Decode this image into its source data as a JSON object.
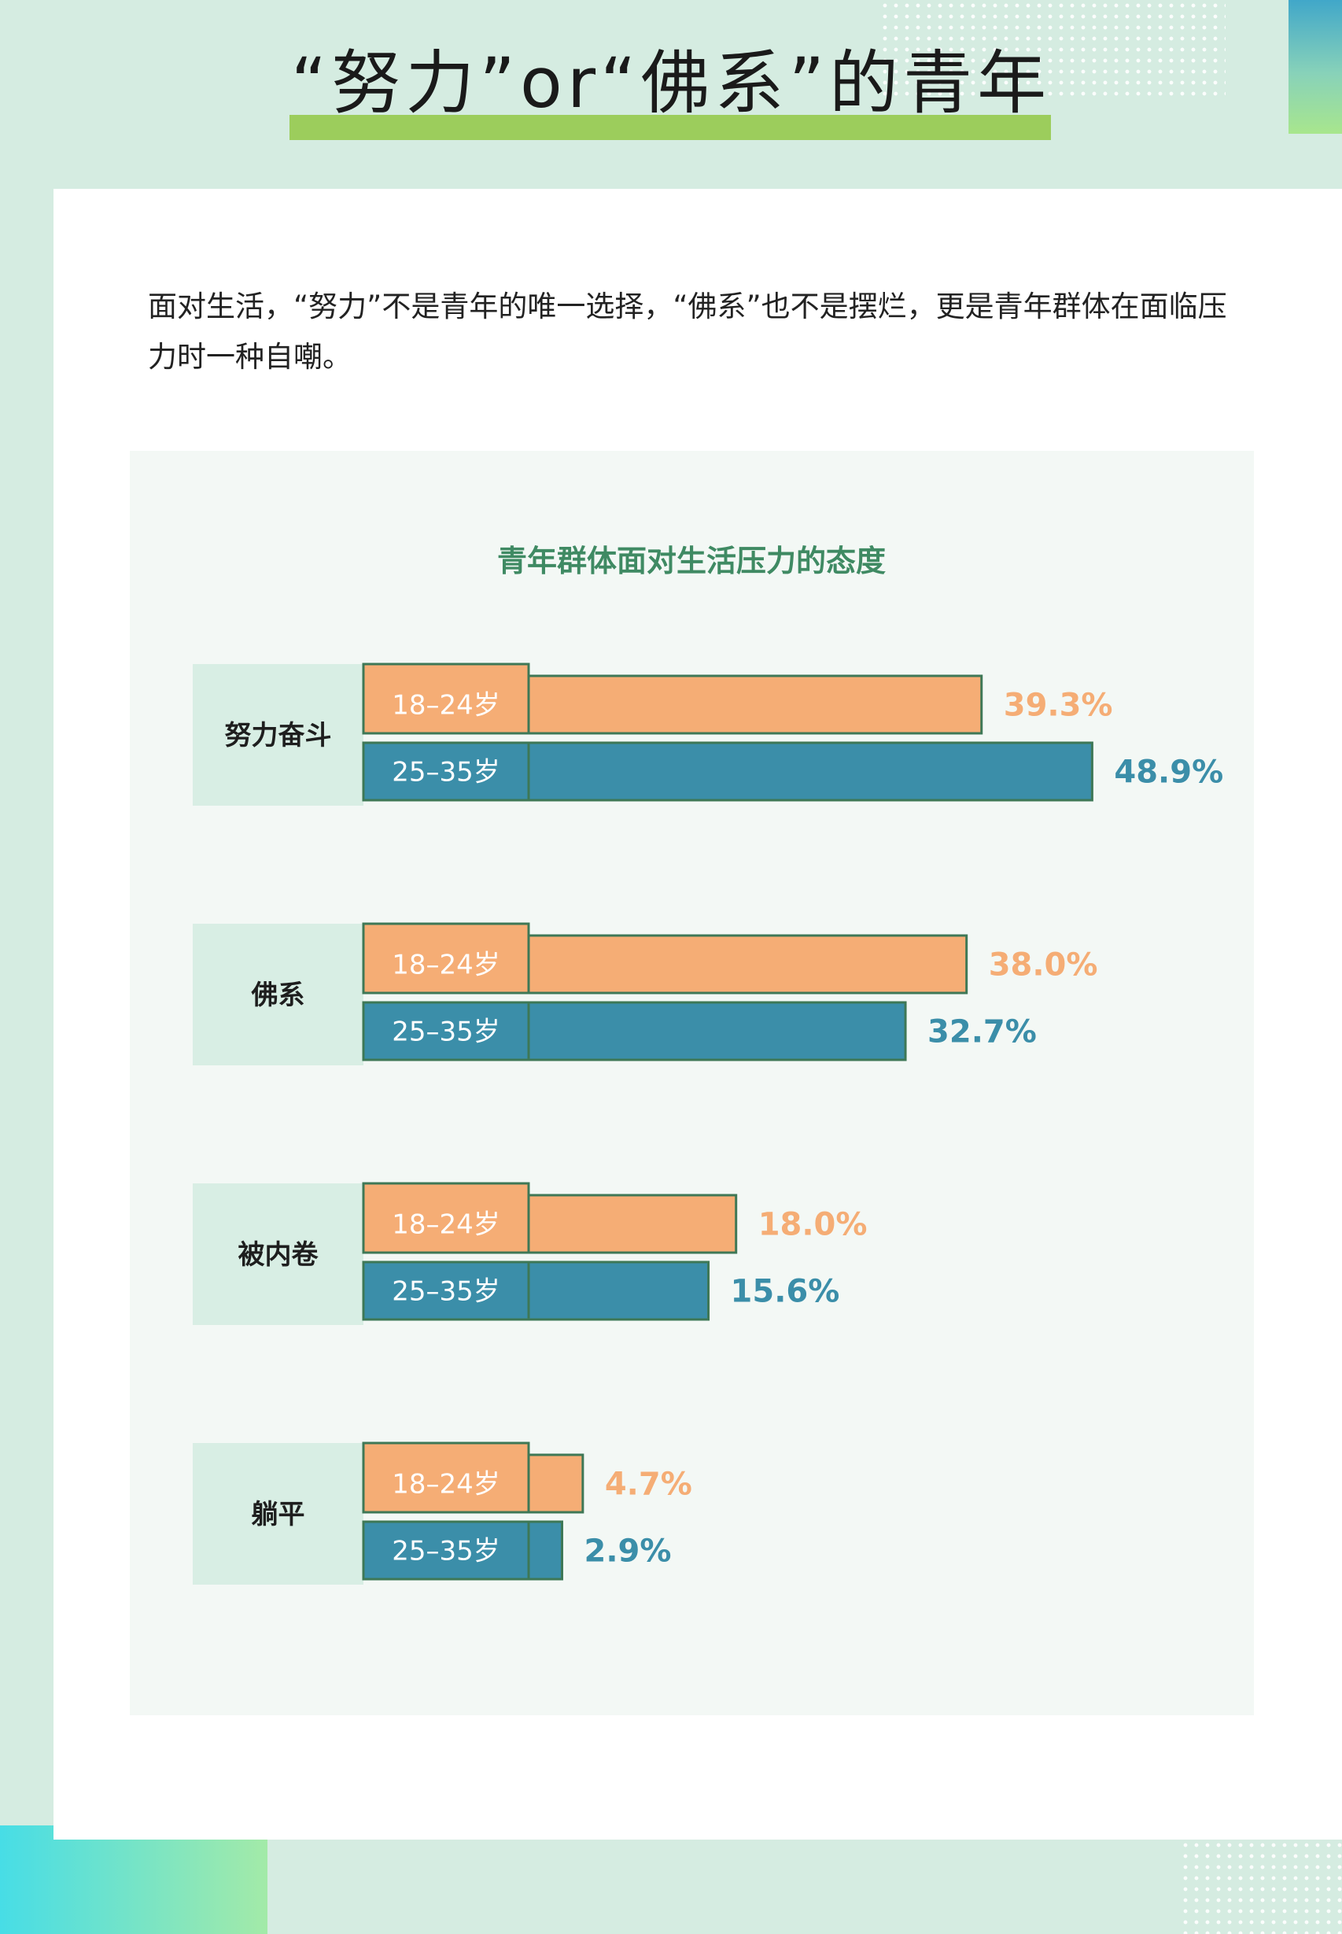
{
  "page": {
    "title": "“努力”or“佛系”的青年",
    "intro": "面对生活，“努力”不是青年的唯一选择，“佛系”也不是摆烂，更是青年群体在面临压力时一种自嘲。"
  },
  "chart_data": {
    "type": "bar",
    "orientation": "horizontal",
    "title": "青年群体面对生活压力的态度",
    "categories": [
      "努力奋斗",
      "佛系",
      "被内卷",
      "躺平"
    ],
    "series": [
      {
        "name": "18–24岁",
        "values": [
          39.3,
          38.0,
          18.0,
          4.7
        ],
        "color": "#f5ad75"
      },
      {
        "name": "25–35岁",
        "values": [
          48.9,
          32.7,
          15.6,
          2.9
        ],
        "color": "#3b8ea9"
      }
    ],
    "data_labels": [
      [
        "39.3%",
        "48.9%"
      ],
      [
        "38.0%",
        "32.7%"
      ],
      [
        "18.0%",
        "15.6%"
      ],
      [
        "4.7%",
        "2.9%"
      ]
    ],
    "unit": "%",
    "grid": false,
    "legend": "inline"
  },
  "colors": {
    "background": "#d5ece1",
    "accent_green": "#9ccd5c",
    "chart_title": "#3f8a63",
    "category_cell": "#d8eee4",
    "bar_border": "#3e7856"
  }
}
